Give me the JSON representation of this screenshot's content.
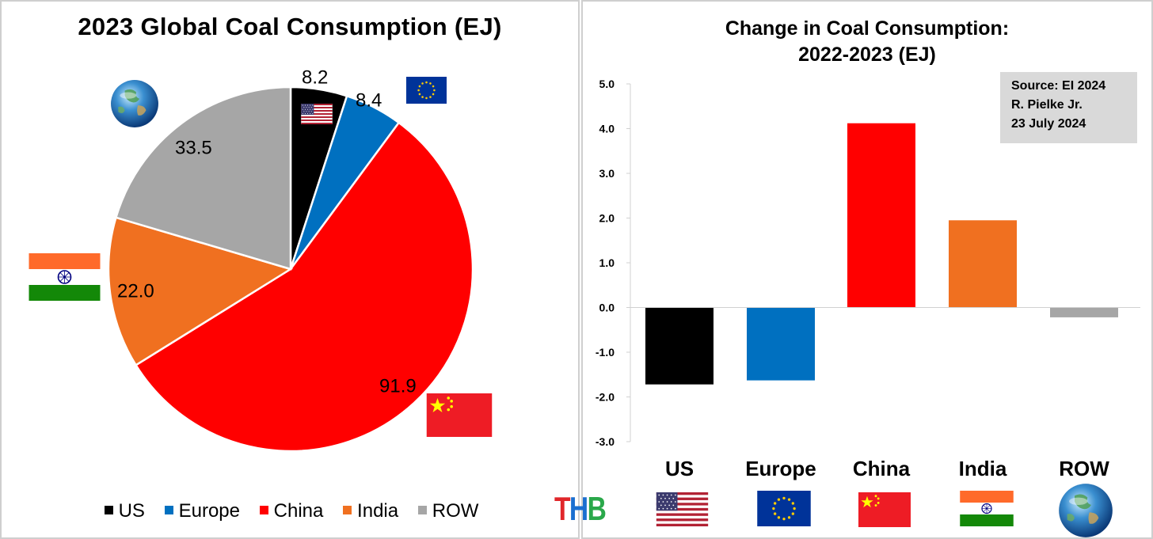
{
  "colors": {
    "US": "#000000",
    "Europe": "#0070c0",
    "China": "#ff0000",
    "India": "#f07020",
    "ROW": "#a6a6a6"
  },
  "icons": [
    "globe-icon",
    "us-flag-icon",
    "eu-flag-icon",
    "china-flag-icon",
    "india-flag-icon"
  ],
  "chart_data": [
    {
      "type": "pie",
      "title": "2023 Global Coal Consumption (EJ)",
      "categories": [
        "US",
        "Europe",
        "China",
        "India",
        "ROW"
      ],
      "values": [
        8.2,
        8.4,
        91.9,
        22.0,
        33.5
      ],
      "data_labels": [
        "8.2",
        "8.4",
        "91.9",
        "22.0",
        "33.5"
      ],
      "legend": [
        "US",
        "Europe",
        "China",
        "India",
        "ROW"
      ],
      "legend_position": "bottom"
    },
    {
      "type": "bar",
      "title": "Change in Coal Consumption:",
      "subtitle": "2022-2023 (EJ)",
      "categories": [
        "US",
        "Europe",
        "China",
        "India",
        "ROW"
      ],
      "values": [
        -1.72,
        -1.63,
        4.12,
        1.95,
        -0.22
      ],
      "ylim": [
        -3.0,
        5.0
      ],
      "yticks": [
        "5.0",
        "4.0",
        "3.0",
        "2.0",
        "1.0",
        "0.0",
        "-1.0",
        "-2.0",
        "-3.0"
      ],
      "grid": false,
      "annotation": [
        "Source: EI 2024",
        "R. Pielke Jr.",
        "23 July 2024"
      ]
    }
  ],
  "logo_text": {
    "t": "T",
    "h": "H",
    "b": "B"
  }
}
